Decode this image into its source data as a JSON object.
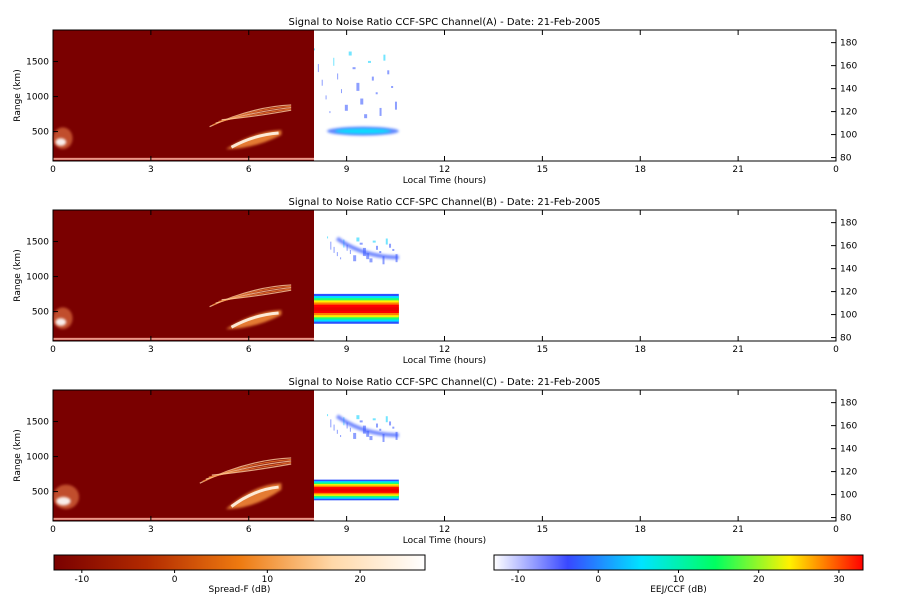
{
  "chart_data": {
    "type": "heatmap",
    "panels": [
      {
        "title": "Signal to Noise Ratio CCF-SPC Channel(A) - Date: 21-Feb-2005",
        "xlabel": "Local Time (hours)",
        "ylabel": "Range (km)",
        "xlim": [
          0,
          24
        ],
        "ylim": [
          80,
          1950
        ],
        "xticks": [
          "0",
          "3",
          "6",
          "9",
          "12",
          "15",
          "18",
          "21",
          "0"
        ],
        "yticks_left": [
          "500",
          "1000",
          "1500"
        ],
        "yticks_right": [
          "80",
          "100",
          "120",
          "140",
          "160",
          "180"
        ],
        "spreadf_end_hour": 8.0,
        "eej_end_hour": 10.6,
        "features": [
          {
            "source": "spread-f",
            "label": "bottomside trace",
            "t": [
              0,
              8
            ],
            "range_km": [
              100,
              125
            ]
          },
          {
            "source": "spread-f",
            "label": "early echoes",
            "t": [
              0,
              0.6
            ],
            "range_km": [
              250,
              560
            ]
          },
          {
            "source": "spread-f",
            "label": "plume lower",
            "t": [
              5.3,
              7
            ],
            "range_km": [
              250,
              520
            ]
          },
          {
            "source": "spread-f",
            "label": "plume upper",
            "t": [
              4.8,
              7.3
            ],
            "range_km": [
              570,
              880
            ]
          },
          {
            "source": "eej",
            "label": "EEJ layer",
            "t": [
              8.4,
              10.6
            ],
            "alt_km": [
              100,
              106
            ]
          },
          {
            "source": "eej",
            "label": "weak returns",
            "t": [
              8.0,
              10.6
            ],
            "alt_km": [
              115,
              175
            ]
          }
        ]
      },
      {
        "title": "Signal to Noise Ratio CCF-SPC Channel(B) - Date: 21-Feb-2005",
        "xlabel": "Local Time (hours)",
        "ylabel": "Range (km)",
        "xlim": [
          0,
          24
        ],
        "ylim": [
          80,
          1950
        ],
        "xticks": [
          "0",
          "3",
          "6",
          "9",
          "12",
          "15",
          "18",
          "21",
          "0"
        ],
        "yticks_left": [
          "500",
          "1000",
          "1500"
        ],
        "yticks_right": [
          "80",
          "100",
          "120",
          "140",
          "160",
          "180"
        ],
        "spreadf_end_hour": 8.0,
        "eej_end_hour": 10.6,
        "features": [
          {
            "source": "spread-f",
            "label": "bottomside trace",
            "t": [
              0,
              8
            ],
            "range_km": [
              100,
              125
            ]
          },
          {
            "source": "spread-f",
            "label": "early echoes",
            "t": [
              0,
              0.6
            ],
            "range_km": [
              250,
              560
            ]
          },
          {
            "source": "spread-f",
            "label": "plume lower",
            "t": [
              5.3,
              7
            ],
            "range_km": [
              250,
              520
            ]
          },
          {
            "source": "spread-f",
            "label": "plume upper",
            "t": [
              4.8,
              7.3
            ],
            "range_km": [
              570,
              880
            ]
          },
          {
            "source": "eej",
            "label": "EEJ layer",
            "t": [
              8.0,
              10.6
            ],
            "alt_km": [
              92,
              118
            ]
          },
          {
            "source": "eej",
            "label": "150 km echoes",
            "t": [
              8.4,
              10.6
            ],
            "alt_km": [
              148,
              168
            ]
          }
        ]
      },
      {
        "title": "Signal to Noise Ratio CCF-SPC Channel(C) - Date: 21-Feb-2005",
        "xlabel": "Local Time (hours)",
        "ylabel": "Range (km)",
        "xlim": [
          0,
          24
        ],
        "ylim": [
          80,
          1950
        ],
        "xticks": [
          "0",
          "3",
          "6",
          "9",
          "12",
          "15",
          "18",
          "21",
          "0"
        ],
        "yticks_left": [
          "500",
          "1000",
          "1500"
        ],
        "yticks_right": [
          "80",
          "100",
          "120",
          "140",
          "160",
          "180"
        ],
        "spreadf_end_hour": 8.0,
        "eej_end_hour": 10.6,
        "features": [
          {
            "source": "spread-f",
            "label": "bottomside trace",
            "t": [
              0,
              8
            ],
            "range_km": [
              100,
              125
            ]
          },
          {
            "source": "spread-f",
            "label": "early echoes",
            "t": [
              0,
              0.8
            ],
            "range_km": [
              250,
              600
            ]
          },
          {
            "source": "spread-f",
            "label": "plume lower",
            "t": [
              5.3,
              7
            ],
            "range_km": [
              250,
              620
            ]
          },
          {
            "source": "spread-f",
            "label": "plume upper",
            "t": [
              4.5,
              7.3
            ],
            "range_km": [
              620,
              980
            ]
          },
          {
            "source": "eej",
            "label": "EEJ layer",
            "t": [
              8.0,
              10.6
            ],
            "alt_km": [
              95,
              113
            ]
          },
          {
            "source": "eej",
            "label": "150 km echoes",
            "t": [
              8.4,
              10.6
            ],
            "alt_km": [
              150,
              170
            ]
          }
        ]
      }
    ],
    "colorbars": [
      {
        "label": "Spread-F (dB)",
        "range": [
          -13,
          27
        ],
        "ticks": [
          "-10",
          "0",
          "10",
          "20"
        ],
        "colors": [
          "#7a0000",
          "#b22a00",
          "#ee7a10",
          "#ffd8a8",
          "#ffffff"
        ]
      },
      {
        "label": "EEJ/CCF (dB)",
        "range": [
          -13,
          33
        ],
        "ticks": [
          "-10",
          "0",
          "10",
          "20",
          "30"
        ],
        "colors": [
          "#ffffff",
          "#3848ff",
          "#00e4ff",
          "#00ff60",
          "#fff200",
          "#ff0000"
        ]
      }
    ]
  }
}
